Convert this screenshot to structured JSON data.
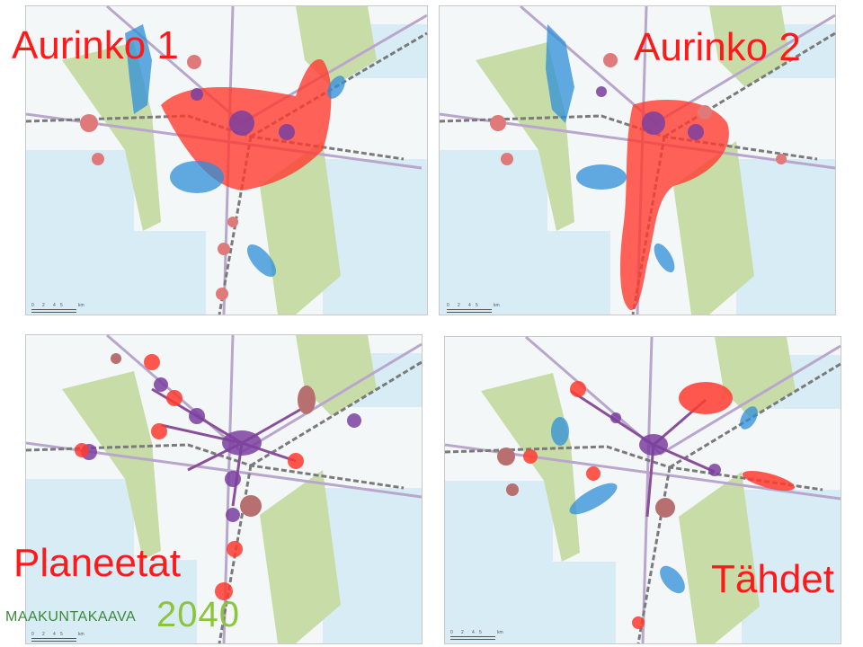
{
  "panels": [
    {
      "id": "p1",
      "title": "Aurinko 1",
      "scale_labels": [
        "0",
        "2",
        "4",
        "5",
        "km"
      ]
    },
    {
      "id": "p2",
      "title": "Aurinko 2",
      "scale_labels": [
        "0",
        "2",
        "4",
        "5",
        "km"
      ]
    },
    {
      "id": "p3",
      "title": "Planeetat",
      "scale_labels": [
        "0",
        "2",
        "4",
        "5",
        "km"
      ]
    },
    {
      "id": "p4",
      "title": "Tähdet",
      "scale_labels": [
        "0",
        "2",
        "4",
        "5",
        "km"
      ]
    }
  ],
  "logo": {
    "text": "MAAKUNTAKAAVA",
    "year": "2040"
  },
  "colors": {
    "title": "#ff1a1a",
    "land": "#f4f7f8",
    "water": "#d8ecf6",
    "green": "#c8dca8",
    "urban": "#d9c6c0",
    "road": "#b9a6cc",
    "rail": "#7a7a7a",
    "growth_red": "#ff3b30",
    "growth_blue": "#2f8fd8",
    "center_purple": "#7b3fa0",
    "logo_text": "#3a8a3a",
    "logo_year": "#8cc43c"
  }
}
